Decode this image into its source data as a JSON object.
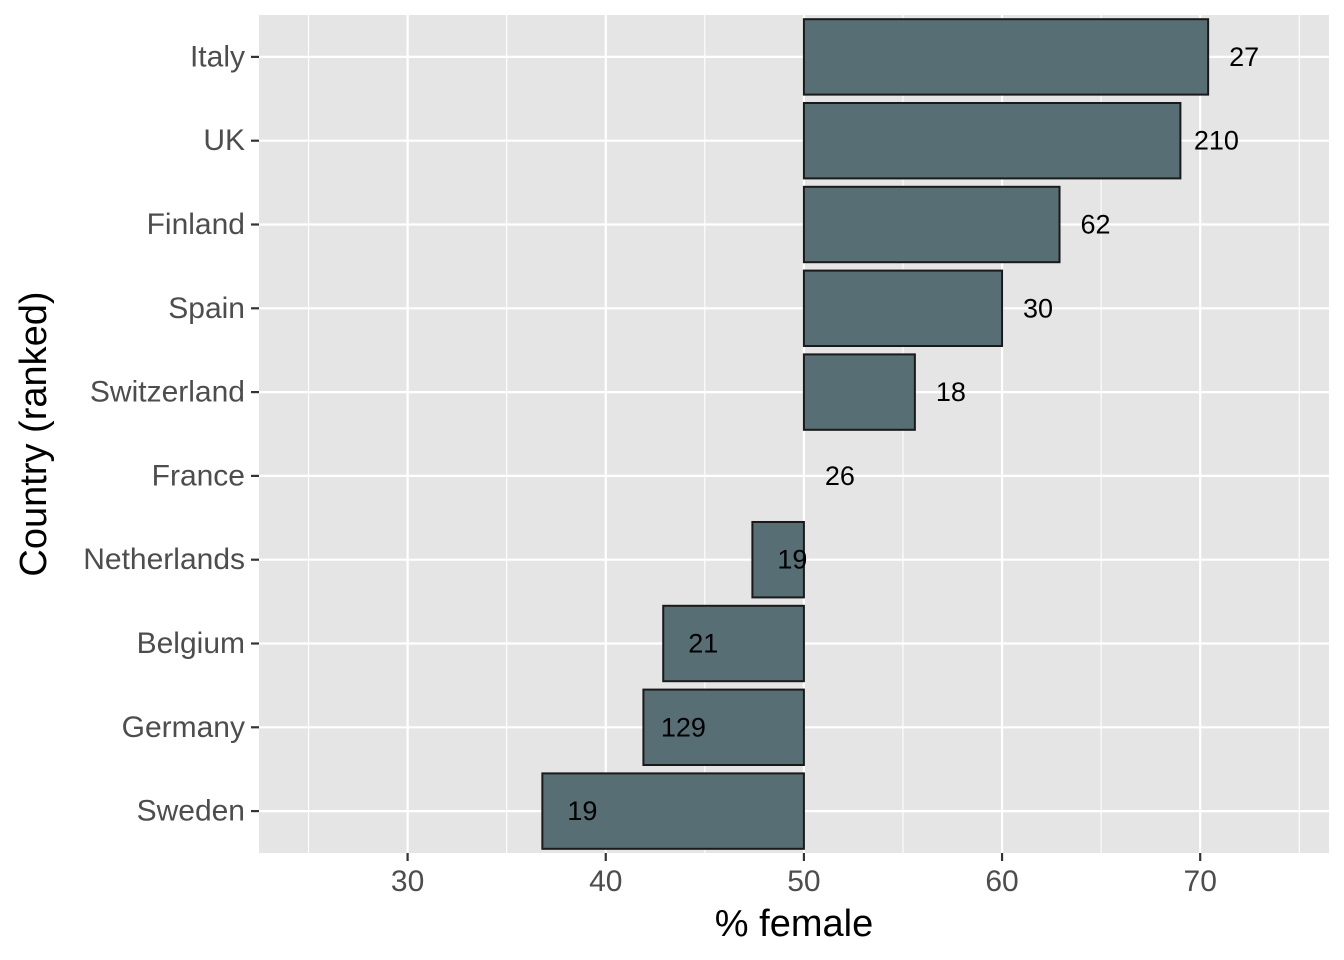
{
  "chart_data": {
    "type": "bar",
    "orientation": "horizontal",
    "baseline": 50,
    "title": "",
    "xlabel": "% female",
    "ylabel": "Country (ranked)",
    "xlim": [
      22.5,
      76.5
    ],
    "x_ticks": [
      30,
      40,
      50,
      60,
      70
    ],
    "grid": true,
    "bar_color": "#566e74",
    "bar_outline_color": "#1a1a1a",
    "panel_background": "#e5e5e5",
    "categories": [
      "Italy",
      "UK",
      "Finland",
      "Spain",
      "Switzerland",
      "France",
      "Netherlands",
      "Belgium",
      "Germany",
      "Sweden"
    ],
    "values": [
      70.4,
      69.0,
      62.9,
      60.0,
      55.6,
      50.0,
      47.4,
      42.9,
      41.9,
      36.8
    ],
    "data_labels": [
      "27",
      "210",
      "62",
      "30",
      "18",
      "26",
      "19",
      "21",
      "129",
      "19"
    ]
  }
}
